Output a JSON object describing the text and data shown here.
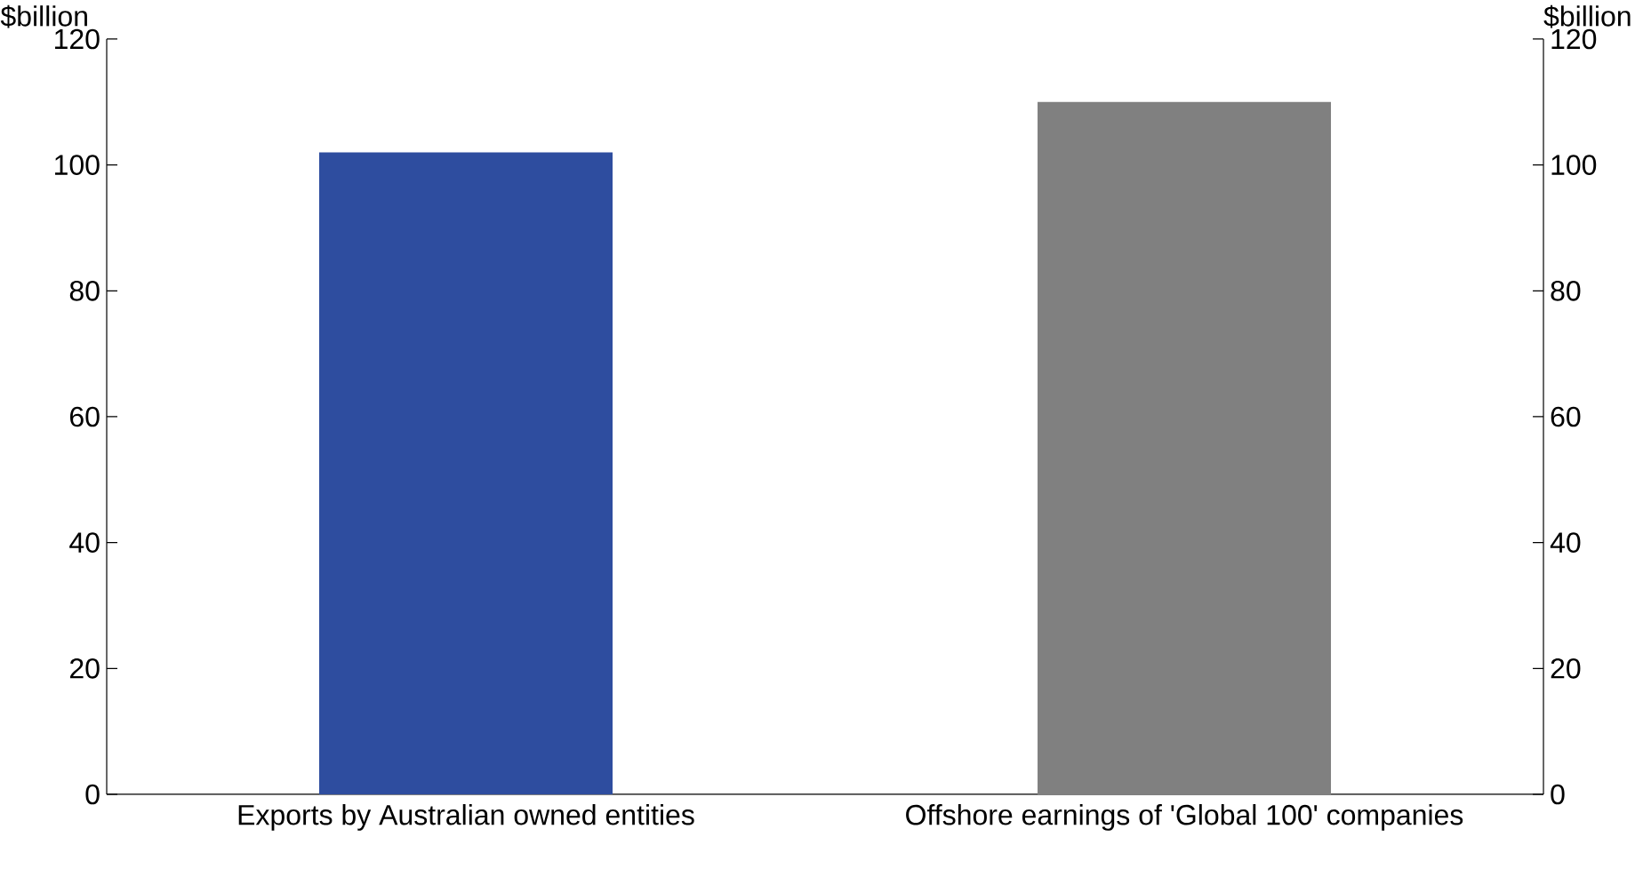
{
  "chart_data": {
    "type": "bar",
    "categories": [
      "Exports by Australian owned entities",
      "Offshore earnings of 'Global 100' companies"
    ],
    "values": [
      102,
      110
    ],
    "colors": [
      "#2e4d9f",
      "#808080"
    ],
    "ylabel": "$billion",
    "y2label": "$billion",
    "ylim": [
      0,
      120
    ],
    "yticks": [
      0,
      20,
      40,
      60,
      80,
      100,
      120
    ],
    "y2lim": [
      0,
      120
    ],
    "y2ticks": [
      0,
      20,
      40,
      60,
      80,
      100,
      120
    ],
    "grid": false
  }
}
